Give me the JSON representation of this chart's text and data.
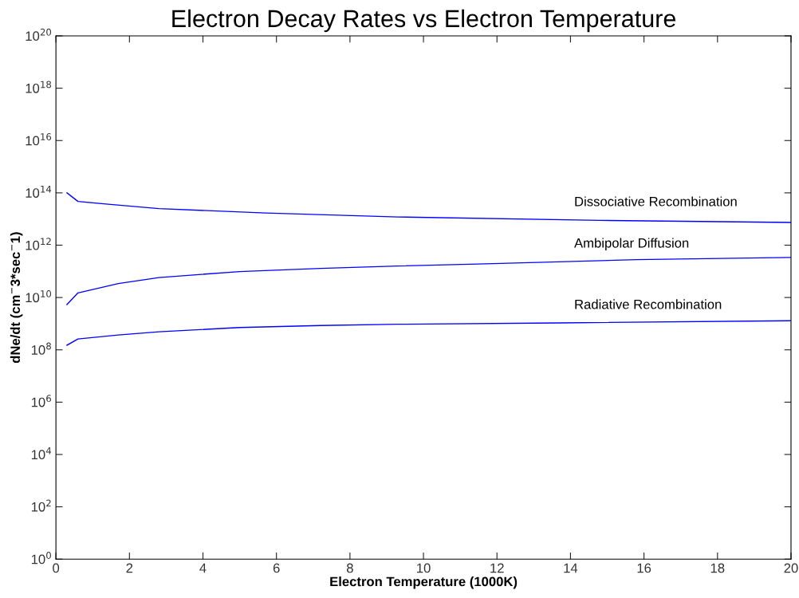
{
  "chart_data": {
    "type": "line",
    "title": "Electron Decay Rates vs Electron Temperature",
    "xlabel": "Electron Temperature (1000K)",
    "ylabel": "dNe/dt (cm$^{−}$3*sec$^{−}$1)",
    "log": "y",
    "xlim": [
      0,
      20
    ],
    "ylim": [
      1,
      1e+20
    ],
    "xticks": [
      0,
      2,
      4,
      6,
      8,
      10,
      12,
      14,
      16,
      18,
      20
    ],
    "yticks": [
      {
        "value": 1,
        "label": "10$^{0}$"
      },
      {
        "value": 100,
        "label": "10$^{2}$"
      },
      {
        "value": 10000,
        "label": "10$^{4}$"
      },
      {
        "value": 1000000.0,
        "label": "10$^{6}$"
      },
      {
        "value": 100000000.0,
        "label": "10$^{8}$"
      },
      {
        "value": 10000000000.0,
        "label": "10$^{10}$"
      },
      {
        "value": 1000000000000.0,
        "label": "10$^{12}$"
      },
      {
        "value": 100000000000000.0,
        "label": "10$^{14}$"
      },
      {
        "value": 1e+16,
        "label": "10$^{16}$"
      },
      {
        "value": 1e+18,
        "label": "10$^{18}$"
      },
      {
        "value": 1e+20,
        "label": "10$^{20}$"
      }
    ],
    "grid": false,
    "legend": false,
    "marker": "none",
    "line_style": "solid",
    "x": [
      0.3,
      0.6,
      1.3,
      1.7,
      2.8,
      5.0,
      5.7,
      7.2,
      9.3,
      11.5,
      13.7,
      14.8,
      15.8,
      20
    ],
    "series": [
      {
        "name": "Dissociative Recombination",
        "color": "#0000ff",
        "values": [
          100000000000000.0,
          47000000000000.0,
          38000000000000.0,
          null,
          25000000000000.0,
          null,
          17000000000000.0,
          null,
          12000000000000.0,
          null,
          null,
          8900000000000.0,
          null,
          7400000000000.0
        ]
      },
      {
        "name": "Ambipolar Diffusion",
        "color": "#0000ff",
        "values": [
          5400000000.0,
          15000000000.0,
          null,
          34000000000.0,
          58000000000.0,
          98000000000.0,
          null,
          130000000000.0,
          160000000000.0,
          190000000000.0,
          null,
          null,
          280000000000.0,
          340000000000.0
        ]
      },
      {
        "name": "Radiative Recombination",
        "color": "#0000ff",
        "values": [
          150000000.0,
          260000000.0,
          null,
          370000000.0,
          490000000.0,
          710000000.0,
          null,
          850000000.0,
          950000000.0,
          null,
          1070000000.0,
          null,
          null,
          1300000000.0
        ]
      }
    ]
  }
}
